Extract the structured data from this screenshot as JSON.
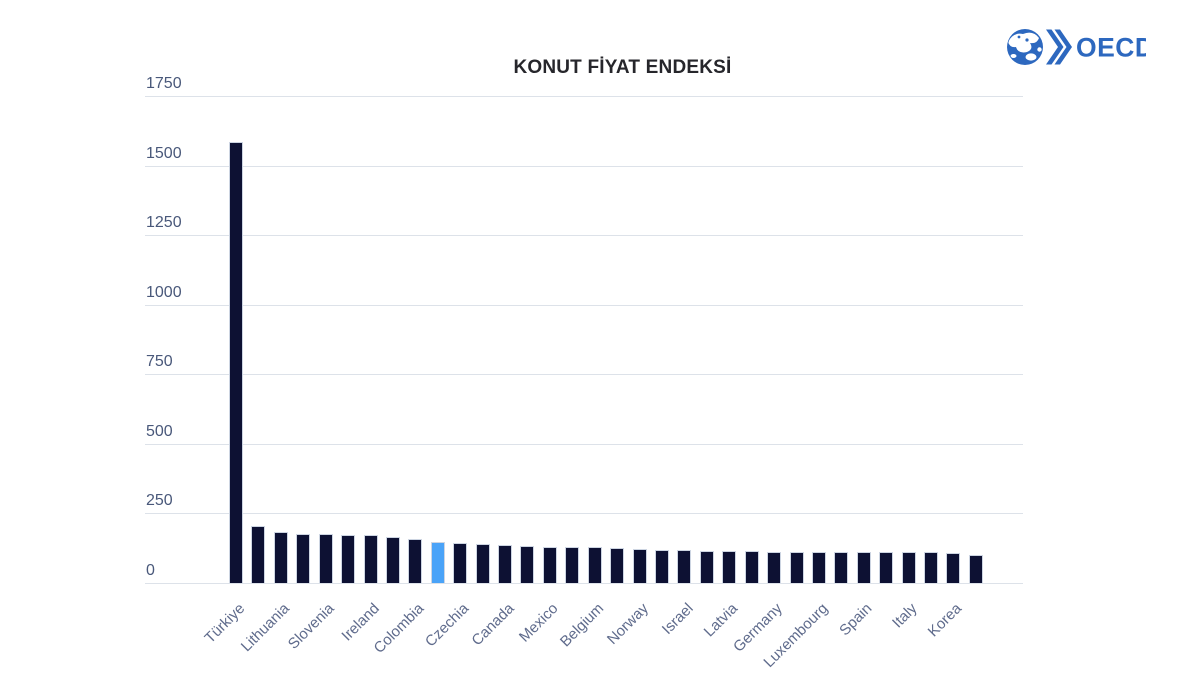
{
  "header": {
    "title": "KONUT FİYAT ENDEKSİ"
  },
  "logo": {
    "wordmark": "OECD",
    "color": "#2d68bf"
  },
  "chart_data": {
    "type": "bar",
    "title": "KONUT FİYAT ENDEKSİ",
    "categories": [
      "Türkiye",
      "",
      "Lithuania",
      "",
      "Slovenia",
      "",
      "Ireland",
      "",
      "Colombia",
      "",
      "Czechia",
      "",
      "Canada",
      "",
      "Mexico",
      "",
      "Belgium",
      "",
      "Norway",
      "",
      "Israel",
      "",
      "Latvia",
      "",
      "Germany",
      "",
      "Luxembourg",
      "",
      "Spain",
      "",
      "Italy",
      "",
      "Korea",
      ""
    ],
    "values": [
      1585,
      206,
      185,
      177,
      175,
      172,
      171,
      165,
      157,
      147,
      143,
      141,
      136,
      134,
      130,
      129,
      128,
      125,
      121,
      120,
      118,
      116,
      115,
      114,
      113,
      113,
      112,
      112,
      111,
      111,
      110,
      110,
      109,
      99
    ],
    "highlight_index": 9,
    "xlabel": "",
    "ylabel": "",
    "ylim": [
      0,
      1750
    ],
    "yticks": [
      0,
      250,
      500,
      750,
      1000,
      1250,
      1500,
      1750
    ],
    "grid": true,
    "legend_position": "none",
    "colors": {
      "bar": "#0d1133",
      "highlight": "#4aa3f8",
      "bar_border": "#cdd5e2",
      "gridline": "#dde2e9",
      "ytick_label": "#49587a",
      "xtick_label": "#5f6b8c",
      "title": "#26262b"
    }
  }
}
